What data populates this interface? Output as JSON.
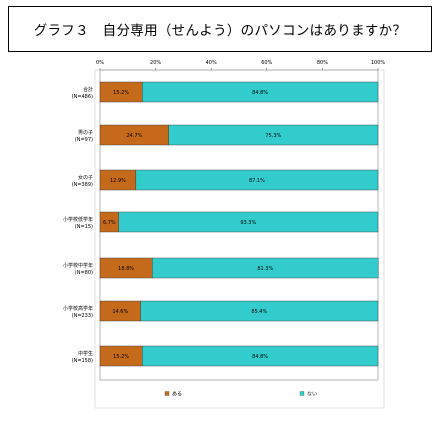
{
  "title": "グラフ３　自分専用（せんよう）のパソコンはありますか？",
  "colors": {
    "aru": "#C46A1A",
    "nai": "#33CCCC",
    "plot_border": "#888888",
    "grid": "#222222"
  },
  "chart_data": {
    "type": "bar",
    "orientation": "horizontal",
    "stacked": "percent",
    "xlim": [
      0,
      100
    ],
    "xticks": [
      "0%",
      "20%",
      "40%",
      "60%",
      "80%",
      "100%"
    ],
    "categories": [
      [
        "合計",
        "(N=486)"
      ],
      [
        "男の子",
        "(N=97)"
      ],
      [
        "女の子",
        "(N=389)"
      ],
      [
        "小学校低学年",
        "(N=15)"
      ],
      [
        "小学校中学年",
        "(N=80)"
      ],
      [
        "小学校高学年",
        "(N=233)"
      ],
      [
        "中学生",
        "(N=158)"
      ]
    ],
    "series": [
      {
        "name": "ある",
        "values": [
          15.2,
          24.7,
          12.9,
          6.7,
          18.8,
          14.6,
          15.2
        ],
        "labels": [
          "15.2%",
          "24.7%",
          "12.9%",
          "6.7%",
          "18.8%",
          "14.6%",
          "15.2%"
        ]
      },
      {
        "name": "ない",
        "values": [
          84.8,
          75.3,
          87.1,
          93.3,
          81.3,
          85.4,
          84.8
        ],
        "labels": [
          "84.8%",
          "75.3%",
          "87.1%",
          "93.3%",
          "81.3%",
          "85.4%",
          "84.8%"
        ]
      }
    ],
    "legend": "bottom",
    "grid": false
  }
}
